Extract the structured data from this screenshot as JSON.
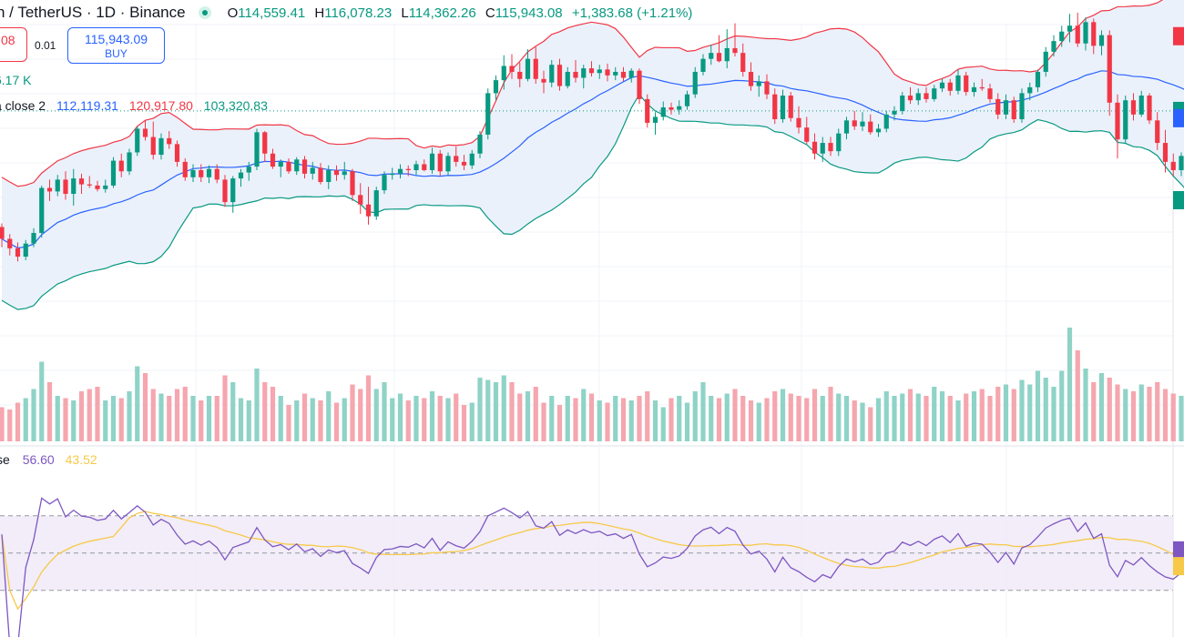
{
  "header": {
    "symbol_title": "n / TetherUS · 1D · Binance",
    "o_label": "O",
    "open": "114,559.41",
    "h_label": "H",
    "high": "116,078.23",
    "l_label": "L",
    "low": "114,362.26",
    "c_label": "C",
    "close": "115,943.08",
    "change": "+1,383.68 (+1.21%)"
  },
  "trade": {
    "sell_price": "08",
    "spread": "0.01",
    "buy_price": "115,943.09",
    "buy_label": "BUY"
  },
  "volume_label": "6.17 K",
  "bollinger": {
    "label": "a close 2",
    "basis": "112,119.31",
    "upper": "120,917.80",
    "lower": "103,320.83"
  },
  "rsi": {
    "label": "se",
    "value": "56.60",
    "ma": "43.52"
  },
  "colors": {
    "up": "#089981",
    "down": "#f23645",
    "basis": "#2962ff",
    "rsi": "#7e57c2",
    "rsi_ma": "#f7c948",
    "band_fill": "#eaf1fb",
    "rsi_fill": "#ede7f6"
  },
  "chart_data": {
    "type": "candlestick",
    "price_scale": {
      "min": 88000,
      "max": 124500
    },
    "candles": [
      [
        106100,
        106400,
        104400,
        105100
      ],
      [
        105100,
        105500,
        103700,
        104300
      ],
      [
        104300,
        104800,
        103200,
        103600
      ],
      [
        103600,
        105000,
        103300,
        104700
      ],
      [
        104700,
        106000,
        104400,
        105600
      ],
      [
        105600,
        109600,
        105200,
        109400
      ],
      [
        109400,
        110100,
        108300,
        109100
      ],
      [
        109100,
        110500,
        108700,
        110100
      ],
      [
        110100,
        110800,
        108400,
        108900
      ],
      [
        108900,
        111000,
        107900,
        110200
      ],
      [
        110200,
        110600,
        108900,
        109700
      ],
      [
        109700,
        110400,
        109400,
        109600
      ],
      [
        109600,
        110000,
        109100,
        109300
      ],
      [
        109300,
        110100,
        109000,
        109600
      ],
      [
        109600,
        112000,
        109400,
        111700
      ],
      [
        111700,
        112300,
        110300,
        110800
      ],
      [
        110800,
        112700,
        110500,
        112400
      ],
      [
        112400,
        114600,
        112100,
        114400
      ],
      [
        114400,
        115100,
        113400,
        113700
      ],
      [
        113700,
        115000,
        111800,
        112200
      ],
      [
        112200,
        114000,
        111800,
        113600
      ],
      [
        113600,
        114200,
        112700,
        113100
      ],
      [
        113100,
        113400,
        111200,
        111600
      ],
      [
        111600,
        111900,
        110000,
        110300
      ],
      [
        110300,
        111400,
        109900,
        110900
      ],
      [
        110900,
        111400,
        109900,
        110300
      ],
      [
        110300,
        111300,
        109800,
        111000
      ],
      [
        111000,
        111400,
        109800,
        110100
      ],
      [
        110100,
        110500,
        107800,
        108200
      ],
      [
        108200,
        110400,
        107300,
        110200
      ],
      [
        110200,
        111000,
        109500,
        110700
      ],
      [
        110700,
        111600,
        110000,
        111200
      ],
      [
        111200,
        114400,
        110900,
        114100
      ],
      [
        114100,
        114200,
        111600,
        112300
      ],
      [
        112300,
        112700,
        111000,
        111200
      ],
      [
        111200,
        111800,
        110300,
        111600
      ],
      [
        111600,
        111900,
        110600,
        110800
      ],
      [
        110800,
        112000,
        110500,
        111800
      ],
      [
        111800,
        112100,
        110200,
        110600
      ],
      [
        110600,
        111600,
        110100,
        111100
      ],
      [
        111100,
        111500,
        109700,
        109900
      ],
      [
        109900,
        111300,
        109300,
        110900
      ],
      [
        110900,
        111300,
        110000,
        110500
      ],
      [
        110500,
        111600,
        110100,
        110800
      ],
      [
        110800,
        111000,
        108300,
        108800
      ],
      [
        108800,
        109800,
        107200,
        108000
      ],
      [
        108000,
        109500,
        106300,
        107000
      ],
      [
        107000,
        109500,
        106700,
        109200
      ],
      [
        109200,
        110800,
        108900,
        110500
      ],
      [
        110500,
        111100,
        110100,
        110600
      ],
      [
        110600,
        111400,
        110200,
        111000
      ],
      [
        111000,
        111300,
        110400,
        110900
      ],
      [
        110900,
        111700,
        110500,
        111400
      ],
      [
        111400,
        111800,
        110800,
        110900
      ],
      [
        110900,
        112800,
        110600,
        112300
      ],
      [
        112300,
        112600,
        110400,
        110800
      ],
      [
        110800,
        112400,
        110500,
        112100
      ],
      [
        112100,
        112900,
        111200,
        111600
      ],
      [
        111600,
        112200,
        110900,
        111300
      ],
      [
        111300,
        112600,
        111000,
        112300
      ],
      [
        112300,
        114200,
        111900,
        113900
      ],
      [
        113900,
        117800,
        113500,
        117400
      ],
      [
        117400,
        118900,
        116800,
        118500
      ],
      [
        118500,
        120600,
        117700,
        119700
      ],
      [
        119700,
        120700,
        118600,
        119200
      ],
      [
        119200,
        120000,
        117900,
        118600
      ],
      [
        118600,
        121100,
        118400,
        120300
      ],
      [
        120300,
        121300,
        118200,
        118600
      ],
      [
        118600,
        119300,
        117400,
        118300
      ],
      [
        118300,
        120200,
        117900,
        119800
      ],
      [
        119800,
        120300,
        117600,
        118000
      ],
      [
        118000,
        119600,
        117800,
        119200
      ],
      [
        119200,
        120200,
        118300,
        118700
      ],
      [
        118700,
        119800,
        117800,
        119500
      ],
      [
        119500,
        120100,
        118800,
        119100
      ],
      [
        119100,
        119800,
        118600,
        119400
      ],
      [
        119400,
        119900,
        118400,
        118900
      ],
      [
        118900,
        119600,
        118500,
        119200
      ],
      [
        119200,
        119600,
        118400,
        118700
      ],
      [
        118700,
        119500,
        118300,
        119300
      ],
      [
        119300,
        119500,
        116500,
        116900
      ],
      [
        116900,
        117300,
        114500,
        114900
      ],
      [
        114900,
        115800,
        113900,
        115400
      ],
      [
        115400,
        116700,
        115100,
        116200
      ],
      [
        116200,
        116600,
        115600,
        116000
      ],
      [
        116000,
        116800,
        115600,
        116300
      ],
      [
        116300,
        117600,
        116000,
        117300
      ],
      [
        117300,
        119600,
        117000,
        119200
      ],
      [
        119200,
        120700,
        118900,
        120300
      ],
      [
        120300,
        121500,
        119800,
        120800
      ],
      [
        120800,
        122300,
        120000,
        120100
      ],
      [
        120100,
        122800,
        119500,
        121200
      ],
      [
        121200,
        123300,
        120500,
        120800
      ],
      [
        120800,
        121600,
        118800,
        119200
      ],
      [
        119200,
        120000,
        117600,
        118000
      ],
      [
        118000,
        118900,
        117100,
        118400
      ],
      [
        118400,
        119000,
        116900,
        117300
      ],
      [
        117300,
        117800,
        114800,
        115200
      ],
      [
        115200,
        117700,
        114900,
        117200
      ],
      [
        117200,
        117500,
        115000,
        115300
      ],
      [
        115300,
        116300,
        114000,
        114500
      ],
      [
        114500,
        115400,
        113100,
        113300
      ],
      [
        113300,
        114000,
        111800,
        112300
      ],
      [
        112300,
        113700,
        111600,
        113200
      ],
      [
        113200,
        113700,
        112100,
        112500
      ],
      [
        112500,
        114400,
        112100,
        114000
      ],
      [
        114000,
        115400,
        113500,
        115100
      ],
      [
        115100,
        115900,
        114300,
        114600
      ],
      [
        114600,
        115800,
        114200,
        115000
      ],
      [
        115000,
        115600,
        113900,
        114100
      ],
      [
        114100,
        114800,
        113700,
        114400
      ],
      [
        114400,
        115900,
        114100,
        115600
      ],
      [
        115600,
        116300,
        115100,
        115900
      ],
      [
        115900,
        117500,
        115600,
        117200
      ],
      [
        117200,
        117900,
        116500,
        116800
      ],
      [
        116800,
        117800,
        116400,
        117400
      ],
      [
        117400,
        117900,
        116600,
        116900
      ],
      [
        116900,
        118100,
        116700,
        117800
      ],
      [
        117800,
        118600,
        117500,
        118300
      ],
      [
        118300,
        118600,
        117200,
        117600
      ],
      [
        117600,
        119400,
        117300,
        118900
      ],
      [
        118900,
        119200,
        117200,
        117500
      ],
      [
        117500,
        118300,
        117100,
        117900
      ],
      [
        117900,
        118600,
        117600,
        117800
      ],
      [
        117800,
        118200,
        116600,
        116900
      ],
      [
        116900,
        117400,
        115200,
        115600
      ],
      [
        115600,
        117300,
        115200,
        116800
      ],
      [
        116800,
        117100,
        114900,
        115200
      ],
      [
        115200,
        117800,
        114900,
        117400
      ],
      [
        117400,
        118300,
        116800,
        117900
      ],
      [
        117900,
        119400,
        117500,
        119200
      ],
      [
        119200,
        121300,
        118800,
        120900
      ],
      [
        120900,
        122300,
        120500,
        121800
      ],
      [
        121800,
        123100,
        121300,
        122600
      ],
      [
        122600,
        124100,
        121700,
        123100
      ],
      [
        123100,
        124200,
        121300,
        121600
      ],
      [
        121600,
        123800,
        121000,
        123400
      ],
      [
        123400,
        123700,
        120700,
        121400
      ],
      [
        121400,
        122700,
        120600,
        122300
      ],
      [
        122300,
        122700,
        115500,
        116600
      ],
      [
        116600,
        117300,
        111900,
        113500
      ],
      [
        113500,
        117200,
        113200,
        116800
      ],
      [
        116800,
        117400,
        115100,
        115600
      ],
      [
        115600,
        117600,
        115400,
        117200
      ],
      [
        117200,
        117400,
        114800,
        115100
      ],
      [
        115100,
        115800,
        112600,
        113200
      ],
      [
        113200,
        114300,
        110700,
        111600
      ],
      [
        111600,
        112300,
        110400,
        110900
      ],
      [
        110900,
        112400,
        110400,
        112100
      ],
      [
        112100,
        113300,
        111000,
        111500
      ],
      [
        111500,
        113100,
        111100,
        112600
      ],
      [
        112600,
        115200,
        111900,
        113800
      ],
      [
        113800,
        114600,
        112700,
        113500
      ],
      [
        113500,
        114400,
        112500,
        114200
      ],
      [
        114200,
        114900,
        113900,
        114600
      ],
      [
        114600,
        116100,
        114400,
        115900
      ]
    ],
    "vol_norm": [
      0.3,
      0.28,
      0.34,
      0.38,
      0.46,
      0.7,
      0.52,
      0.4,
      0.38,
      0.36,
      0.44,
      0.46,
      0.48,
      0.36,
      0.4,
      0.38,
      0.44,
      0.66,
      0.6,
      0.46,
      0.42,
      0.4,
      0.46,
      0.48,
      0.4,
      0.36,
      0.4,
      0.4,
      0.58,
      0.52,
      0.38,
      0.36,
      0.64,
      0.52,
      0.48,
      0.4,
      0.32,
      0.36,
      0.42,
      0.38,
      0.36,
      0.44,
      0.34,
      0.38,
      0.5,
      0.46,
      0.58,
      0.46,
      0.52,
      0.38,
      0.42,
      0.36,
      0.4,
      0.38,
      0.44,
      0.4,
      0.38,
      0.42,
      0.32,
      0.34,
      0.56,
      0.54,
      0.52,
      0.58,
      0.52,
      0.42,
      0.44,
      0.48,
      0.34,
      0.4,
      0.32,
      0.4,
      0.38,
      0.46,
      0.42,
      0.36,
      0.34,
      0.4,
      0.38,
      0.36,
      0.4,
      0.44,
      0.36,
      0.3,
      0.38,
      0.4,
      0.34,
      0.44,
      0.52,
      0.4,
      0.38,
      0.42,
      0.46,
      0.4,
      0.36,
      0.34,
      0.38,
      0.44,
      0.46,
      0.42,
      0.4,
      0.38,
      0.46,
      0.4,
      0.48,
      0.42,
      0.4,
      0.36,
      0.34,
      0.3,
      0.38,
      0.44,
      0.4,
      0.42,
      0.46,
      0.42,
      0.4,
      0.48,
      0.44,
      0.4,
      0.36,
      0.42,
      0.44,
      0.46,
      0.4,
      0.48,
      0.5,
      0.46,
      0.54,
      0.5,
      0.62,
      0.56,
      0.48,
      0.62,
      1.0,
      0.8,
      0.64,
      0.52,
      0.6,
      0.56,
      0.5,
      0.46,
      0.44,
      0.5,
      0.48,
      0.52,
      0.46,
      0.42,
      0.4,
      0.38
    ],
    "bb_period": 20,
    "bb_mult": 2,
    "rsi_period": 14,
    "rsi_ma_period": 14,
    "rsi_levels": [
      70,
      50,
      30
    ]
  }
}
